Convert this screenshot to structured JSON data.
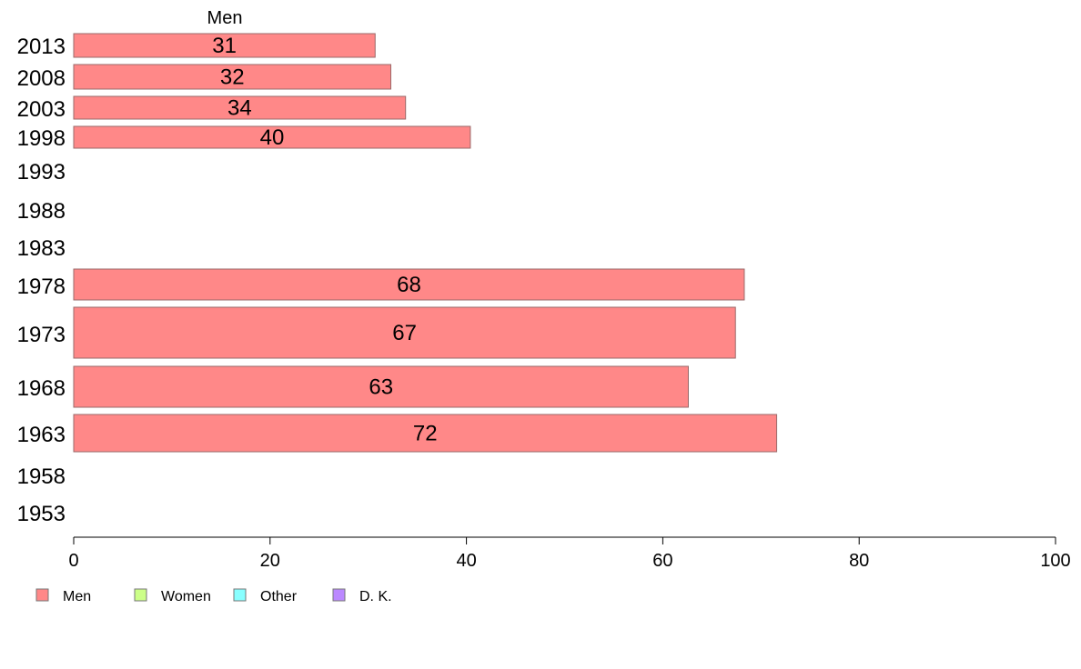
{
  "chart_data": {
    "type": "bar",
    "orientation": "horizontal",
    "series_title": "Men",
    "categories": [
      "2013",
      "2008",
      "2003",
      "1998",
      "1993",
      "1988",
      "1983",
      "1978",
      "1973",
      "1968",
      "1963",
      "1958",
      "1953"
    ],
    "series": [
      {
        "name": "Men",
        "values": [
          30.7,
          32.3,
          33.8,
          40.4,
          null,
          null,
          null,
          68.3,
          67.4,
          62.6,
          71.6,
          null,
          null
        ],
        "labels": [
          "31",
          "32",
          "34",
          "40",
          "",
          "",
          "",
          "68",
          "67",
          "63",
          "72",
          "",
          ""
        ]
      }
    ],
    "xlim": [
      0,
      100
    ],
    "xticks": [
      0,
      20,
      40,
      60,
      80,
      100
    ],
    "grid": false,
    "legend": {
      "placement": "bottom-left",
      "entries": [
        {
          "name": "Men",
          "color": "#ff8888"
        },
        {
          "name": "Women",
          "color": "#ccff88"
        },
        {
          "name": "Other",
          "color": "#88ffff"
        },
        {
          "name": "D. K.",
          "color": "#bb88ff"
        }
      ]
    }
  },
  "colors": {
    "bar_fill": "#ff8888",
    "bar_stroke": "#9a6a6a",
    "axis": "#000000"
  }
}
